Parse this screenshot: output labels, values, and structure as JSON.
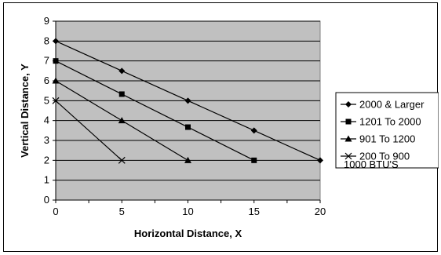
{
  "chart_data": {
    "type": "line",
    "title": "",
    "xlabel": "Horizontal Distance, X",
    "ylabel": "Vertical Distance, Y",
    "xlim": [
      0,
      20
    ],
    "ylim": [
      0,
      9
    ],
    "x_ticks": [
      0,
      5,
      10,
      15,
      20
    ],
    "y_ticks": [
      0,
      1,
      2,
      3,
      4,
      5,
      6,
      7,
      8,
      9
    ],
    "grid": "horizontal",
    "plot_background": "#c0c0c0",
    "line_color": "#000000",
    "legend_position": "right",
    "series": [
      {
        "name": "2000 & Larger",
        "marker": "diamond",
        "x": [
          0,
          5,
          10,
          15,
          20
        ],
        "y": [
          8,
          6.5,
          5,
          3.5,
          2
        ]
      },
      {
        "name": "1201 To 2000",
        "marker": "square",
        "x": [
          0,
          5,
          10,
          15
        ],
        "y": [
          7,
          5.33,
          3.67,
          2
        ]
      },
      {
        "name": "901 To 1200",
        "marker": "triangle",
        "x": [
          0,
          5,
          10
        ],
        "y": [
          6,
          4,
          2
        ]
      },
      {
        "name": "200 To 900",
        "marker": "x",
        "x": [
          0,
          5
        ],
        "y": [
          5,
          2
        ]
      }
    ],
    "annotation": "1000 BTU'S"
  }
}
